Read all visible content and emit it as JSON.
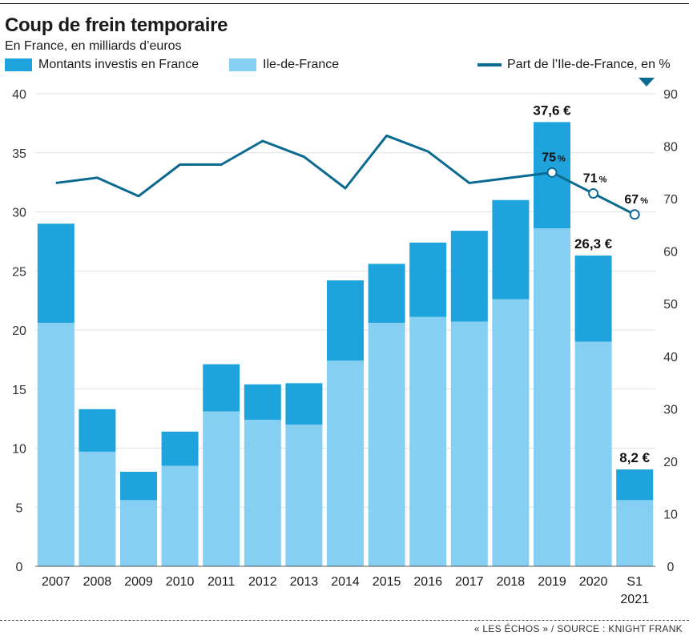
{
  "title": "Coup de frein temporaire",
  "subtitle": "En France, en milliards d’euros",
  "legend": {
    "total": "Montants investis en France",
    "idf": "Ile-de-France",
    "share": "Part de l’Ile-de-France, en %"
  },
  "footer": "« LES ÉCHOS » / SOURCE : KNIGHT FRANK",
  "colors": {
    "total": "#1ea3dc",
    "idf": "#85cff3",
    "line": "#0b6a91",
    "grid": "#dde3e7"
  },
  "chart_data": {
    "type": "bar",
    "stacked": true,
    "categories": [
      "2007",
      "2008",
      "2009",
      "2010",
      "2011",
      "2012",
      "2013",
      "2014",
      "2015",
      "2016",
      "2017",
      "2018",
      "2019",
      "2020",
      "S1 2021"
    ],
    "category_lines": [
      [
        "2007"
      ],
      [
        "2008"
      ],
      [
        "2009"
      ],
      [
        "2010"
      ],
      [
        "2011"
      ],
      [
        "2012"
      ],
      [
        "2013"
      ],
      [
        "2014"
      ],
      [
        "2015"
      ],
      [
        "2016"
      ],
      [
        "2017"
      ],
      [
        "2018"
      ],
      [
        "2019"
      ],
      [
        "2020"
      ],
      [
        "S1",
        "2021"
      ]
    ],
    "series": [
      {
        "name": "Montants investis en France",
        "values": [
          29.0,
          13.3,
          8.0,
          11.4,
          17.1,
          15.4,
          15.5,
          24.2,
          25.6,
          27.4,
          28.4,
          31.0,
          37.6,
          26.3,
          8.2
        ]
      },
      {
        "name": "Ile-de-France",
        "values": [
          20.6,
          9.7,
          5.6,
          8.5,
          13.1,
          12.4,
          12.0,
          17.4,
          20.6,
          21.1,
          20.7,
          22.6,
          28.6,
          19.0,
          5.6
        ]
      }
    ],
    "line_series": {
      "name": "Part de l’Ile-de-France, en %",
      "values": [
        73.0,
        74.0,
        70.5,
        76.5,
        76.5,
        81.0,
        78.0,
        72.0,
        82.0,
        79.0,
        73.0,
        74.0,
        75.0,
        71.0,
        67.0
      ],
      "labeled_points": [
        12,
        13,
        14
      ]
    },
    "value_labels": [
      {
        "index": 12,
        "text": "37,6 €"
      },
      {
        "index": 13,
        "text": "26,3 €"
      },
      {
        "index": 14,
        "text": "8,2 €"
      }
    ],
    "line_labels": [
      {
        "index": 12,
        "num": "75",
        "unit": "%"
      },
      {
        "index": 13,
        "num": "71",
        "unit": "%"
      },
      {
        "index": 14,
        "num": "67",
        "unit": "%"
      }
    ],
    "ylim_left": [
      0,
      40
    ],
    "yticks_left": [
      0,
      5,
      10,
      15,
      20,
      25,
      30,
      35,
      40
    ],
    "ylim_right": [
      0,
      90
    ],
    "yticks_right": [
      0,
      10,
      20,
      30,
      40,
      50,
      60,
      70,
      80,
      90
    ],
    "grid": true
  }
}
